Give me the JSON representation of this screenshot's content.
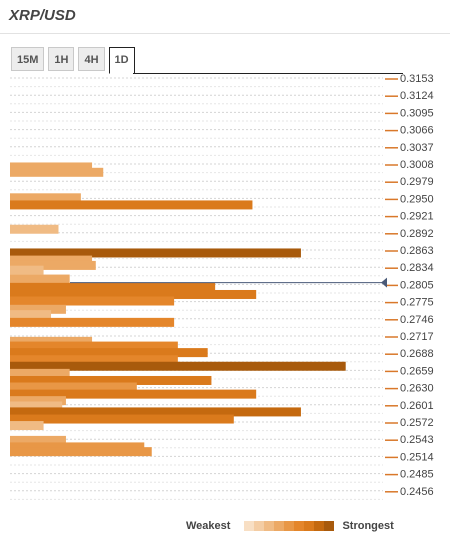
{
  "header": {
    "title": "XRP/USD"
  },
  "tabs": [
    {
      "label": "15M",
      "active": false
    },
    {
      "label": "1H",
      "active": false
    },
    {
      "label": "4H",
      "active": false
    },
    {
      "label": "1D",
      "active": true
    }
  ],
  "legend": {
    "weakest": "Weakest",
    "strongest": "Strongest",
    "colors": [
      "#f8dfc4",
      "#f4cda4",
      "#f0bb84",
      "#eca965",
      "#e89746",
      "#e4862b",
      "#da7a1c",
      "#c4690f",
      "#a85a0c"
    ]
  },
  "colors": {
    "grid": "#d4d4d4",
    "tick": "#d9782a",
    "current_price_line": "#4a5a78"
  },
  "chart_data": {
    "type": "bar",
    "orientation": "horizontal",
    "y_tick_labels": [
      "0.3153",
      "0.3124",
      "0.3095",
      "0.3066",
      "0.3037",
      "0.3008",
      "0.2979",
      "0.2950",
      "0.2921",
      "0.2892",
      "0.2863",
      "0.2834",
      "0.2805",
      "0.2775",
      "0.2746",
      "0.2717",
      "0.2688",
      "0.2659",
      "0.2630",
      "0.2601",
      "0.2572",
      "0.2543",
      "0.2514",
      "0.2485",
      "0.2456"
    ],
    "y_range": [
      0.2427,
      0.3153
    ],
    "x_range": [
      0,
      100
    ],
    "current_price": 0.2808,
    "bars": [
      {
        "y": 0.3003,
        "value": 22,
        "strength": 3
      },
      {
        "y": 0.2994,
        "value": 25,
        "strength": 3
      },
      {
        "y": 0.2951,
        "value": 19,
        "strength": 3
      },
      {
        "y": 0.2939,
        "value": 65,
        "strength": 6
      },
      {
        "y": 0.2898,
        "value": 13,
        "strength": 2
      },
      {
        "y": 0.2858,
        "value": 78,
        "strength": 8
      },
      {
        "y": 0.2846,
        "value": 22,
        "strength": 3
      },
      {
        "y": 0.2837,
        "value": 23,
        "strength": 3
      },
      {
        "y": 0.2829,
        "value": 9,
        "strength": 2
      },
      {
        "y": 0.2814,
        "value": 16,
        "strength": 3
      },
      {
        "y": 0.28,
        "value": 55,
        "strength": 6
      },
      {
        "y": 0.2788,
        "value": 66,
        "strength": 6
      },
      {
        "y": 0.2777,
        "value": 44,
        "strength": 5
      },
      {
        "y": 0.2763,
        "value": 15,
        "strength": 3
      },
      {
        "y": 0.2754,
        "value": 11,
        "strength": 2
      },
      {
        "y": 0.2741,
        "value": 44,
        "strength": 5
      },
      {
        "y": 0.2709,
        "value": 22,
        "strength": 3
      },
      {
        "y": 0.2701,
        "value": 45,
        "strength": 5
      },
      {
        "y": 0.269,
        "value": 53,
        "strength": 6
      },
      {
        "y": 0.2678,
        "value": 45,
        "strength": 5
      },
      {
        "y": 0.2667,
        "value": 90,
        "strength": 8
      },
      {
        "y": 0.2655,
        "value": 16,
        "strength": 3
      },
      {
        "y": 0.2643,
        "value": 54,
        "strength": 6
      },
      {
        "y": 0.2632,
        "value": 34,
        "strength": 4
      },
      {
        "y": 0.262,
        "value": 66,
        "strength": 6
      },
      {
        "y": 0.2609,
        "value": 15,
        "strength": 3
      },
      {
        "y": 0.26,
        "value": 14,
        "strength": 2
      },
      {
        "y": 0.259,
        "value": 78,
        "strength": 7
      },
      {
        "y": 0.2578,
        "value": 60,
        "strength": 6
      },
      {
        "y": 0.2567,
        "value": 9,
        "strength": 2
      },
      {
        "y": 0.2542,
        "value": 15,
        "strength": 3
      },
      {
        "y": 0.2531,
        "value": 36,
        "strength": 4
      },
      {
        "y": 0.2523,
        "value": 38,
        "strength": 4
      }
    ]
  }
}
